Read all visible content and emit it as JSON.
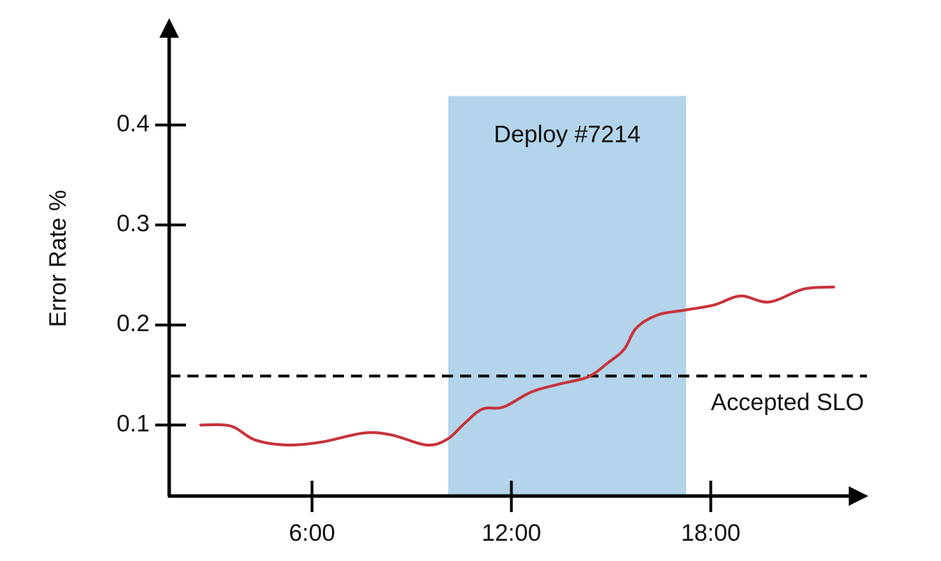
{
  "chart_data": {
    "type": "line",
    "ylabel": "Error Rate %",
    "x": [
      2.65,
      3.55,
      4.29,
      5.24,
      6.29,
      7.56,
      8.4,
      9.45,
      10.08,
      10.6,
      11.13,
      11.76,
      12.6,
      13.45,
      14.3,
      14.9,
      15.4,
      15.76,
      16.4,
      17.24,
      18.1,
      18.9,
      19.76,
      20.8,
      21.7
    ],
    "values": [
      0.1,
      0.099,
      0.085,
      0.08,
      0.083,
      0.092,
      0.09,
      0.08,
      0.086,
      0.102,
      0.116,
      0.118,
      0.133,
      0.141,
      0.148,
      0.162,
      0.176,
      0.197,
      0.21,
      0.215,
      0.22,
      0.229,
      0.223,
      0.236,
      0.238
    ],
    "color": "#c8323a",
    "xlim": [
      1.7,
      22.7
    ],
    "ylim": [
      0.029,
      0.504
    ],
    "xticks": [
      {
        "value": 6,
        "label": "6:00"
      },
      {
        "value": 12,
        "label": "12:00"
      },
      {
        "value": 18,
        "label": "18:00"
      }
    ],
    "yticks": [
      0.1,
      0.2,
      0.3,
      0.4
    ],
    "regions": [
      {
        "x": [
          10.1,
          17.26
        ],
        "y_top": 0.429,
        "label": "Deploy #7214",
        "color": "#b3d4ea"
      }
    ],
    "hlines": [
      {
        "value": 0.149,
        "label": "Accepted SLO"
      }
    ]
  }
}
